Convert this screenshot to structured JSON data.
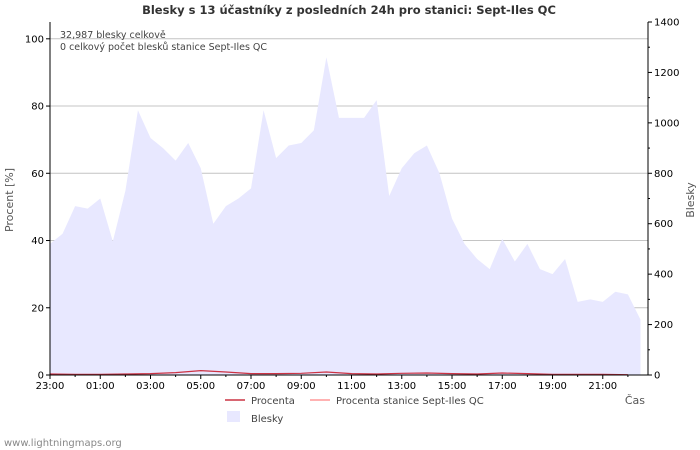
{
  "chart_data": {
    "type": "area",
    "title": "Blesky s 13 účastníky z posledních 24h pro stanici: Sept-Iles QC",
    "ylabel_left": "Procent   [%]",
    "ylabel_right": "Blesky",
    "xlabel": "Čas",
    "ylim_left": [
      0,
      105
    ],
    "ylim_right": [
      0,
      1400
    ],
    "yticks_left": [
      "0",
      "20",
      "40",
      "60",
      "80",
      "100"
    ],
    "yticks_right": [
      "0",
      "200",
      "400",
      "600",
      "800",
      "1000",
      "1200",
      "1400"
    ],
    "xticks": [
      "23:00",
      "01:00",
      "03:00",
      "05:00",
      "07:00",
      "09:00",
      "11:00",
      "13:00",
      "15:00",
      "17:00",
      "19:00",
      "21:00"
    ],
    "annotations": [
      "32,987 blesky celkově",
      "0 celkový počet blesků stanice Sept-Iles QC"
    ],
    "series": [
      {
        "name": "Blesky",
        "axis": "right",
        "color": "#e8e8ff",
        "x": [
          0,
          0.5,
          1,
          1.5,
          2,
          2.5,
          3,
          3.5,
          4,
          4.5,
          5,
          5.5,
          6,
          6.5,
          7,
          7.5,
          8,
          8.5,
          9,
          9.5,
          10,
          10.5,
          11,
          11.5,
          12,
          12.5,
          13,
          13.5,
          14,
          14.5,
          15,
          15.5,
          16,
          16.5,
          17,
          17.5,
          18,
          18.5,
          19,
          19.5,
          20,
          20.5,
          21,
          21.5,
          22,
          22.5,
          23,
          23.5
        ],
        "values": [
          520,
          560,
          670,
          660,
          700,
          530,
          730,
          1050,
          940,
          900,
          850,
          920,
          820,
          600,
          670,
          700,
          740,
          1050,
          860,
          910,
          920,
          970,
          1260,
          1020,
          1020,
          1020,
          1090,
          710,
          820,
          880,
          910,
          800,
          620,
          520,
          460,
          420,
          540,
          450,
          520,
          420,
          400,
          460,
          290,
          300,
          290,
          330,
          320,
          220
        ]
      },
      {
        "name": "Procenta",
        "axis": "left",
        "color": "#cc3344",
        "x": [
          0,
          1,
          2,
          3,
          4,
          5,
          6,
          7,
          8,
          9,
          10,
          11,
          12,
          13,
          14,
          15,
          16,
          17,
          18,
          19,
          20,
          21,
          22,
          23
        ],
        "values": [
          0.3,
          0.2,
          0.2,
          0.3,
          0.4,
          0.7,
          1.3,
          0.9,
          0.4,
          0.4,
          0.5,
          0.9,
          0.4,
          0.3,
          0.5,
          0.6,
          0.4,
          0.3,
          0.6,
          0.4,
          0.2,
          0.2,
          0.2,
          0.1
        ]
      },
      {
        "name": "Procenta stanice Sept-Iles QC",
        "axis": "left",
        "color": "#ff9999",
        "x": [
          0,
          23.5
        ],
        "values": [
          0,
          0
        ]
      }
    ],
    "legend": [
      {
        "label": "Procenta",
        "type": "line",
        "color": "#cc3344"
      },
      {
        "label": "Procenta stanice Sept-Iles QC",
        "type": "line",
        "color": "#ff9999"
      },
      {
        "label": "Blesky",
        "type": "area",
        "color": "#e8e8ff"
      }
    ],
    "grid": true
  },
  "footer": "www.lightningmaps.org"
}
